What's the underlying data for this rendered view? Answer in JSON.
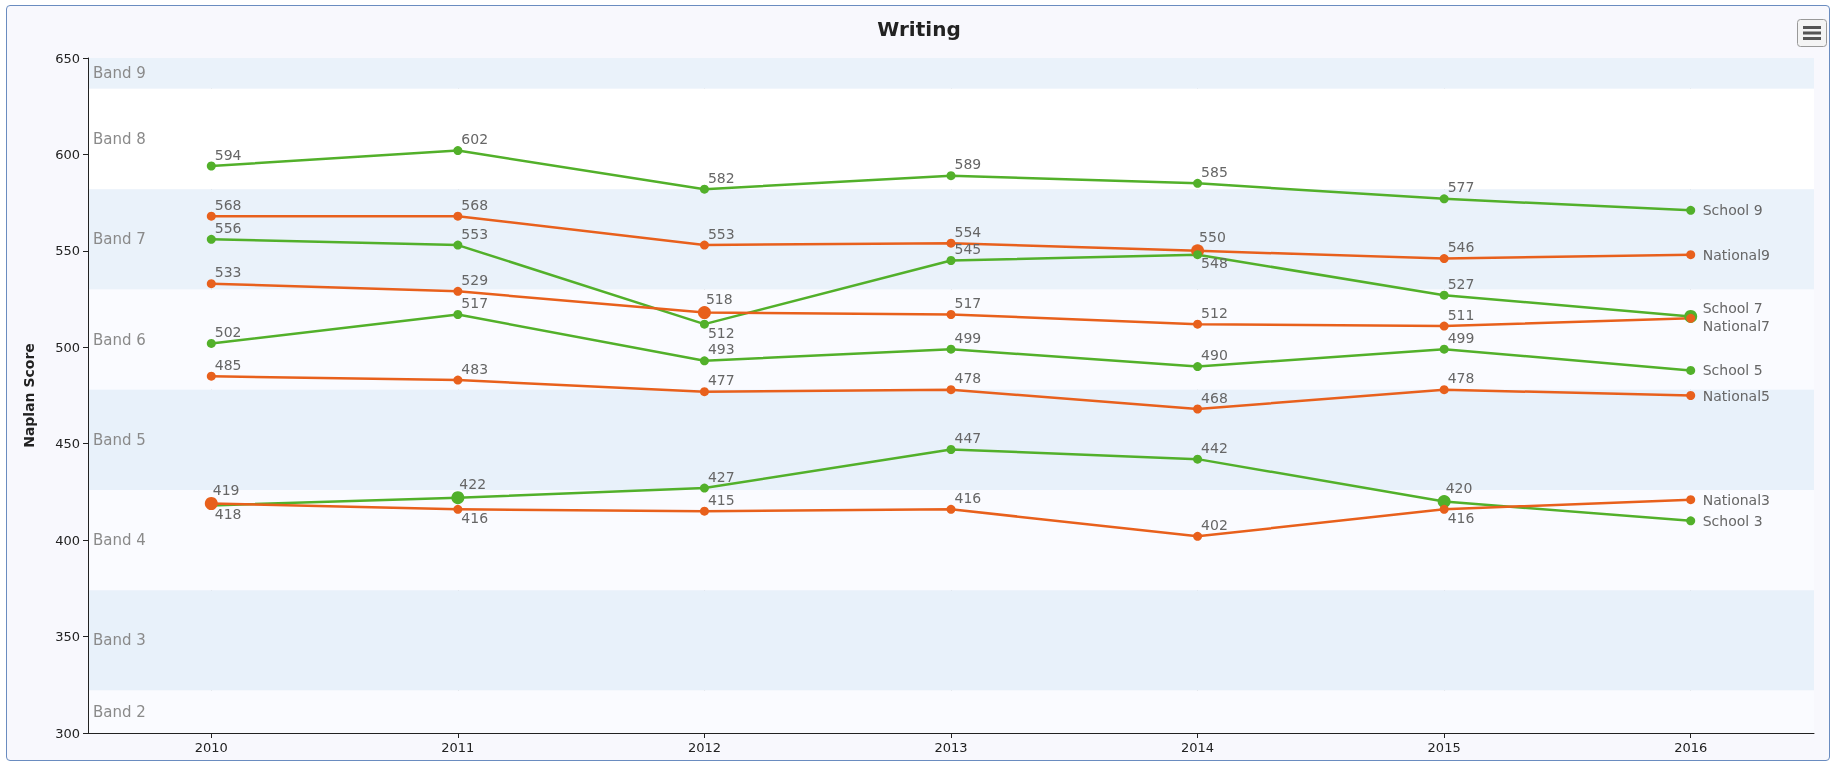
{
  "chart_data": {
    "type": "line",
    "title": "Writing",
    "ylabel": "Naplan Score",
    "x": [
      2010,
      2011,
      2012,
      2013,
      2014,
      2015,
      2016
    ],
    "xlim": [
      2009.5,
      2016.5
    ],
    "xticks": [
      2010,
      2011,
      2012,
      2013,
      2014,
      2015,
      2016
    ],
    "ylim": [
      300,
      650
    ],
    "yticks": [
      300,
      350,
      400,
      450,
      500,
      550,
      600,
      650
    ],
    "grid": "x",
    "legend": false,
    "marker": "circle",
    "line_style": "solid",
    "series": [
      {
        "name": "School 9",
        "color": "#52b02a",
        "values": [
          594,
          602,
          582,
          589,
          585,
          577,
          571
        ],
        "value_labels": [
          "594",
          "602",
          "582",
          "589",
          "585",
          "577",
          null
        ]
      },
      {
        "name": "National9",
        "color": "#e8601c",
        "values": [
          568,
          568,
          553,
          554,
          550,
          546,
          548
        ],
        "value_labels": [
          "568",
          "568",
          "553",
          "554",
          "550",
          "546",
          null
        ]
      },
      {
        "name": "School 7",
        "color": "#52b02a",
        "values": [
          556,
          553,
          512,
          545,
          548,
          527,
          516
        ],
        "value_labels": [
          "556",
          "553",
          "512",
          "545",
          "548",
          "527",
          null
        ]
      },
      {
        "name": "National7",
        "color": "#e8601c",
        "values": [
          533,
          529,
          518,
          517,
          512,
          511,
          515
        ],
        "value_labels": [
          "533",
          "529",
          "518",
          "517",
          "512",
          "511",
          null
        ]
      },
      {
        "name": "School 5",
        "color": "#52b02a",
        "values": [
          502,
          517,
          493,
          499,
          490,
          499,
          488
        ],
        "value_labels": [
          "502",
          "517",
          "493",
          "499",
          "490",
          "499",
          null
        ]
      },
      {
        "name": "National5",
        "color": "#e8601c",
        "values": [
          485,
          483,
          477,
          478,
          468,
          478,
          475
        ],
        "value_labels": [
          "485",
          "483",
          "477",
          "478",
          "468",
          "478",
          null
        ]
      },
      {
        "name": "School 3",
        "color": "#52b02a",
        "values": [
          418,
          422,
          427,
          447,
          442,
          420,
          410
        ],
        "value_labels": [
          "418",
          "422",
          "427",
          "447",
          "442",
          "420",
          null
        ]
      },
      {
        "name": "National3",
        "color": "#e8601c",
        "values": [
          419,
          416,
          415,
          416,
          402,
          416,
          421
        ],
        "value_labels": [
          "419",
          "416",
          "415",
          "416",
          "402",
          "416",
          null
        ]
      }
    ],
    "bands": [
      {
        "axis": "y",
        "from": 634,
        "to": 650,
        "label": "Band 9",
        "color": "#eaf2fa"
      },
      {
        "axis": "y",
        "from": 582,
        "to": 634,
        "label": "Band 8",
        "color": "#ffffff"
      },
      {
        "axis": "y",
        "from": 530,
        "to": 582,
        "label": "Band 7",
        "color": "#eaf2fa"
      },
      {
        "axis": "y",
        "from": 478,
        "to": 530,
        "label": "Band 6",
        "color": "#fafbff"
      },
      {
        "axis": "y",
        "from": 426,
        "to": 478,
        "label": "Band 5",
        "color": "#e8f1fa"
      },
      {
        "axis": "y",
        "from": 374,
        "to": 426,
        "label": "Band 4",
        "color": "#fafbff"
      },
      {
        "axis": "y",
        "from": 322,
        "to": 374,
        "label": "Band 3",
        "color": "#e8f1fa"
      },
      {
        "axis": "y",
        "from": 300,
        "to": 322,
        "label": "Band 2",
        "color": "#fafbff"
      }
    ]
  }
}
